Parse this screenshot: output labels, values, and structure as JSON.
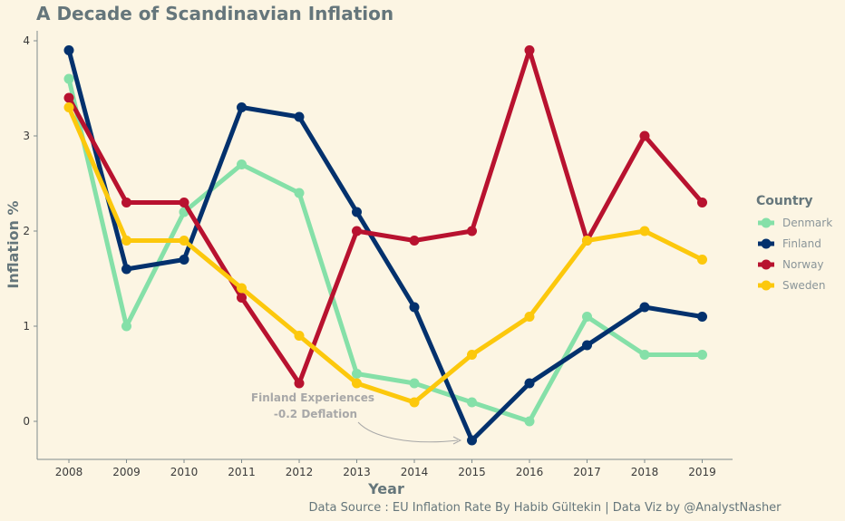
{
  "chart_data": {
    "type": "line",
    "title": "A Decade of Scandinavian Inflation",
    "xlabel": "Year",
    "ylabel": "Inflation %",
    "x": [
      2008,
      2009,
      2010,
      2011,
      2012,
      2013,
      2014,
      2015,
      2016,
      2017,
      2018,
      2019
    ],
    "xlim": [
      2007.5,
      2019.5
    ],
    "ylim": [
      -0.4,
      4.1
    ],
    "yticks": [
      0,
      1,
      2,
      3,
      4
    ],
    "grid": false,
    "legend": {
      "title": "Country",
      "position": "right"
    },
    "series": [
      {
        "name": "Denmark",
        "color": "#85e0a8",
        "values": [
          3.6,
          1.0,
          2.2,
          2.7,
          2.4,
          0.5,
          0.4,
          0.2,
          0.0,
          1.1,
          0.7,
          0.7
        ]
      },
      {
        "name": "Finland",
        "color": "#03316d",
        "values": [
          3.9,
          1.6,
          1.7,
          3.3,
          3.2,
          2.2,
          1.2,
          -0.2,
          0.4,
          0.8,
          1.2,
          1.1
        ]
      },
      {
        "name": "Norway",
        "color": "#b8122f",
        "values": [
          3.4,
          2.3,
          2.3,
          1.3,
          0.4,
          2.0,
          1.9,
          2.0,
          3.9,
          1.9,
          3.0,
          2.3
        ]
      },
      {
        "name": "Sweden",
        "color": "#fcc80c",
        "values": [
          3.3,
          1.9,
          1.9,
          1.4,
          0.9,
          0.4,
          0.2,
          0.7,
          1.1,
          1.9,
          2.0,
          1.7
        ]
      }
    ],
    "annotations": [
      {
        "text_line1": "Finland Experiences",
        "text_line2": "-0.2 Deflation",
        "points_to": {
          "x": 2015,
          "y": -0.2
        }
      }
    ],
    "caption": "Data Source : EU Inflation Rate By Habib Gültekin | Data Viz by @AnalystNasher"
  }
}
